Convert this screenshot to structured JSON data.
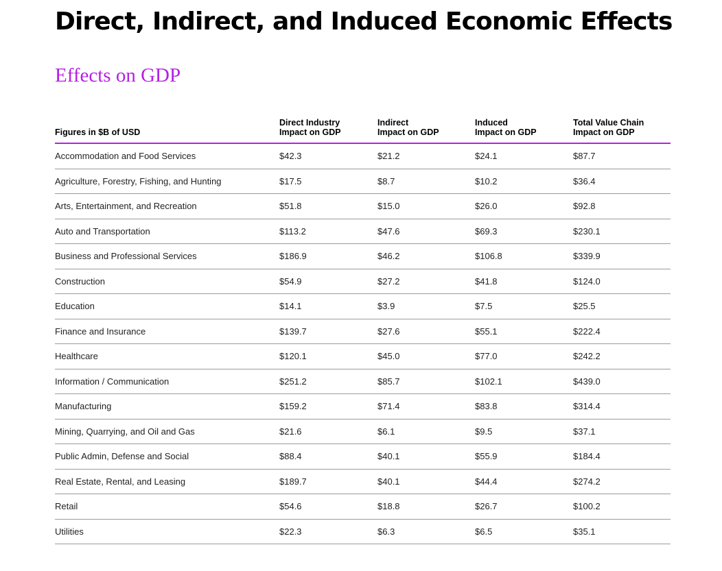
{
  "title": "Direct, Indirect, and Induced Economic Effects",
  "subtitle": "Effects on GDP",
  "table": {
    "headers": [
      [
        "Figures in $B of USD"
      ],
      [
        "Direct Industry",
        "Impact on GDP"
      ],
      [
        "Indirect",
        "Impact on GDP"
      ],
      [
        "Induced",
        "Impact on GDP"
      ],
      [
        "Total Value Chain",
        "Impact on GDP"
      ]
    ],
    "rows": [
      [
        "Accommodation and Food Services",
        "$42.3",
        "$21.2",
        "$24.1",
        "$87.7"
      ],
      [
        "Agriculture, Forestry, Fishing, and Hunting",
        "$17.5",
        "$8.7",
        "$10.2",
        "$36.4"
      ],
      [
        "Arts, Entertainment, and Recreation",
        "$51.8",
        "$15.0",
        "$26.0",
        "$92.8"
      ],
      [
        "Auto and Transportation",
        "$113.2",
        "$47.6",
        "$69.3",
        "$230.1"
      ],
      [
        "Business and Professional Services",
        "$186.9",
        "$46.2",
        "$106.8",
        "$339.9"
      ],
      [
        "Construction",
        "$54.9",
        "$27.2",
        "$41.8",
        "$124.0"
      ],
      [
        "Education",
        "$14.1",
        "$3.9",
        "$7.5",
        "$25.5"
      ],
      [
        "Finance and Insurance",
        "$139.7",
        "$27.6",
        "$55.1",
        "$222.4"
      ],
      [
        "Healthcare",
        "$120.1",
        "$45.0",
        "$77.0",
        "$242.2"
      ],
      [
        "Information / Communication",
        "$251.2",
        "$85.7",
        "$102.1",
        "$439.0"
      ],
      [
        "Manufacturing",
        "$159.2",
        "$71.4",
        "$83.8",
        "$314.4"
      ],
      [
        "Mining, Quarrying, and Oil and Gas",
        "$21.6",
        "$6.1",
        "$9.5",
        "$37.1"
      ],
      [
        "Public Admin, Defense and Social",
        "$88.4",
        "$40.1",
        "$55.9",
        "$184.4"
      ],
      [
        "Real Estate, Rental, and Leasing",
        "$189.7",
        "$40.1",
        "$44.4",
        "$274.2"
      ],
      [
        "Retail",
        "$54.6",
        "$18.8",
        "$26.7",
        "$100.2"
      ],
      [
        "Utilities",
        "$22.3",
        "$6.3",
        "$6.5",
        "$35.1"
      ]
    ]
  },
  "colors": {
    "accent": "#b520e2",
    "text": "#000000",
    "cell_text": "#222222",
    "row_divider": "#9a9a9a",
    "background": "#ffffff"
  }
}
